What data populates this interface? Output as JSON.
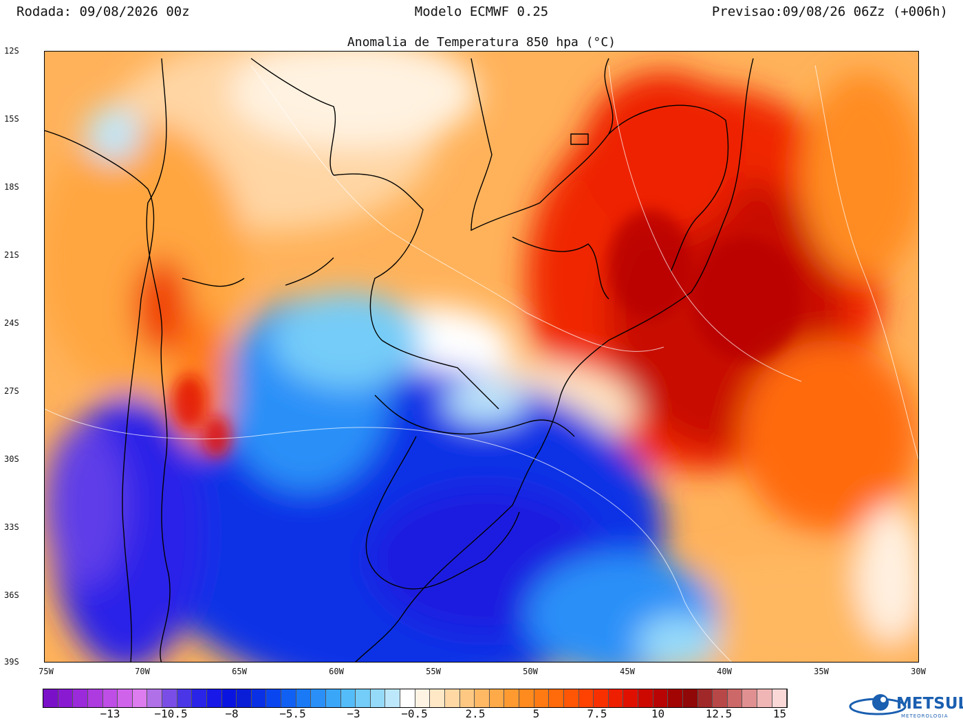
{
  "header": {
    "left": "Rodada: 09/08/2026 00z",
    "center": "Modelo ECMWF 0.25",
    "right": "Previsao:09/08/26 06Zz (+006h)"
  },
  "map": {
    "title": "Anomalia de Temperatura 850 hpa (°C)",
    "lat_ticks": [
      "12S",
      "15S",
      "18S",
      "21S",
      "24S",
      "27S",
      "30S",
      "33S",
      "36S",
      "39S"
    ],
    "lon_ticks": [
      "75W",
      "70W",
      "65W",
      "60W",
      "55W",
      "50W",
      "45W",
      "40W",
      "35W",
      "30W"
    ],
    "extent": {
      "lon_min": -75,
      "lon_max": -30,
      "lat_min": -39,
      "lat_max": -12
    }
  },
  "colorbar": {
    "labels": [
      "−13",
      "−10.5",
      "−8",
      "−5.5",
      "−3",
      "−0.5",
      "2.5",
      "5",
      "7.5",
      "10",
      "12.5",
      "15"
    ],
    "colors": [
      "#7a10c8",
      "#8a1ad2",
      "#9b2ada",
      "#ad3be0",
      "#bf4ee6",
      "#cf64eb",
      "#dc7cef",
      "#b070e8",
      "#7a4ee6",
      "#4a36e6",
      "#2a24e8",
      "#1818e8",
      "#0a14e0",
      "#0a1ed8",
      "#0a30e6",
      "#0a46f0",
      "#1060f4",
      "#1a7af6",
      "#2a90f8",
      "#3aa6f8",
      "#54bcf8",
      "#74ccf8",
      "#96dafa",
      "#bde8fb",
      "#ffffff",
      "#fff4e4",
      "#ffe8c6",
      "#ffd8a4",
      "#ffc882",
      "#ffb864",
      "#ffaa48",
      "#ff9a30",
      "#ff8a1e",
      "#ff7a12",
      "#ff6a0a",
      "#ff5606",
      "#ff4202",
      "#f83000",
      "#ee1e00",
      "#e01000",
      "#cc0800",
      "#b80404",
      "#a20404",
      "#900808",
      "#a02828",
      "#b84848",
      "#cc6868",
      "#e09090",
      "#f0b6b6",
      "#fad8d8"
    ],
    "palette_note_icon": "metsul-logo"
  },
  "logo": {
    "name": "METSUL",
    "sub": "METEOROLOGIA"
  }
}
